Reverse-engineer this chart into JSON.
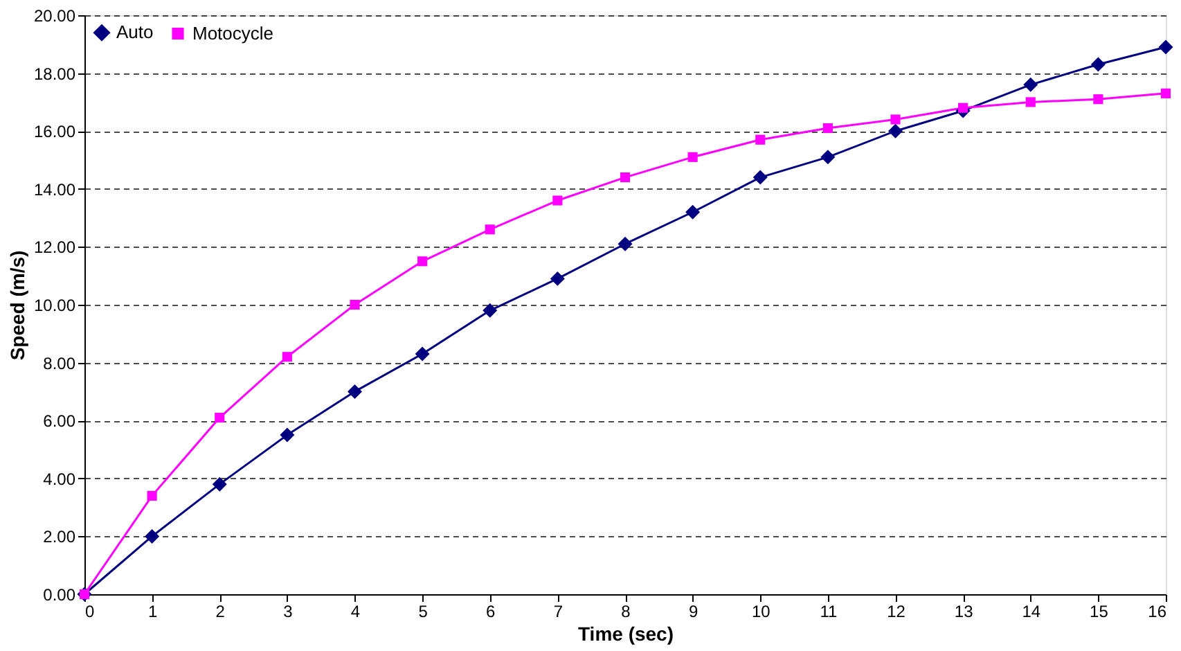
{
  "chart_data": {
    "type": "line",
    "xlabel": "Time (sec)",
    "ylabel": "Speed (m/s)",
    "x": [
      0,
      1,
      2,
      3,
      4,
      5,
      6,
      7,
      8,
      9,
      10,
      11,
      12,
      13,
      14,
      15,
      16
    ],
    "series": [
      {
        "name": "Auto",
        "color": "#000080",
        "marker": "diamond",
        "values": [
          0,
          2.0,
          3.8,
          5.5,
          7.0,
          8.3,
          9.8,
          10.9,
          12.1,
          13.2,
          14.4,
          15.1,
          16.0,
          16.7,
          17.6,
          18.3,
          18.9
        ]
      },
      {
        "name": "Motocycle",
        "color": "#ff00ff",
        "marker": "square",
        "values": [
          0,
          3.4,
          6.1,
          8.2,
          10.0,
          11.5,
          12.6,
          13.6,
          14.4,
          15.1,
          15.7,
          16.1,
          16.4,
          16.8,
          17.0,
          17.1,
          17.3
        ]
      }
    ],
    "xlim": [
      0,
      16
    ],
    "xticks": [
      0,
      1,
      2,
      3,
      4,
      5,
      6,
      7,
      8,
      9,
      10,
      11,
      12,
      13,
      14,
      15,
      16
    ],
    "ylim": [
      0,
      20
    ],
    "yticks": [
      {
        "value": 0,
        "label": "0.00"
      },
      {
        "value": 2,
        "label": "2.00"
      },
      {
        "value": 4,
        "label": "4.00"
      },
      {
        "value": 6,
        "label": "6.00"
      },
      {
        "value": 8,
        "label": "8.00"
      },
      {
        "value": 10,
        "label": "10.00"
      },
      {
        "value": 12,
        "label": "12.00"
      },
      {
        "value": 14,
        "label": "14.00"
      },
      {
        "value": 16,
        "label": "16.00"
      },
      {
        "value": 18,
        "label": "18.00"
      },
      {
        "value": 20,
        "label": "20.00"
      }
    ],
    "grid": "y",
    "legend": "top left",
    "line_style": "solid"
  }
}
